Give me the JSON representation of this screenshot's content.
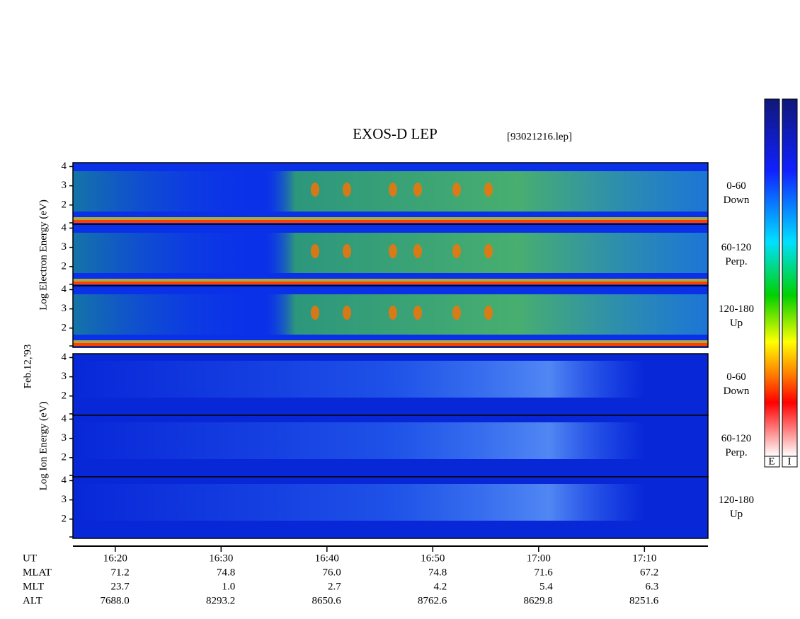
{
  "chart_data": {
    "type": "spectrogram",
    "title": "EXOS-D LEP",
    "subtitle": "[93021216.lep]",
    "date_label": "Feb.12,'93",
    "xlim": [
      "16:16",
      "17:16"
    ],
    "xticks": [
      "16:20",
      "16:30",
      "16:40",
      "16:50",
      "17:00",
      "17:10"
    ],
    "x_label": "UT",
    "rows": [
      {
        "name": "MLAT",
        "labels": [
          "71.2",
          "74.8",
          "76.0",
          "74.8",
          "71.6",
          "67.2"
        ]
      },
      {
        "name": "MLT",
        "labels": [
          "23.7",
          "1.0",
          "2.7",
          "4.2",
          "5.4",
          "6.3"
        ]
      },
      {
        "name": "ALT",
        "labels": [
          "7688.0",
          "8293.2",
          "8650.6",
          "8762.6",
          "8629.8",
          "8251.6"
        ]
      }
    ],
    "ylim": [
      1,
      4.2
    ],
    "yticks": [
      2,
      3,
      4
    ],
    "groups": [
      {
        "ylabel": "Log Electron Energy (eV)",
        "panels": [
          {
            "angle": "0-60",
            "direction": "Down"
          },
          {
            "angle": "60-120",
            "direction": "Perp."
          },
          {
            "angle": "120-180",
            "direction": "Up"
          }
        ]
      },
      {
        "ylabel": "Log Ion Energy (eV)",
        "panels": [
          {
            "angle": "0-60",
            "direction": "Down"
          },
          {
            "angle": "60-120",
            "direction": "Perp."
          },
          {
            "angle": "120-180",
            "direction": "Up"
          }
        ]
      }
    ],
    "colorbar_labels": [
      "E",
      "I"
    ]
  }
}
